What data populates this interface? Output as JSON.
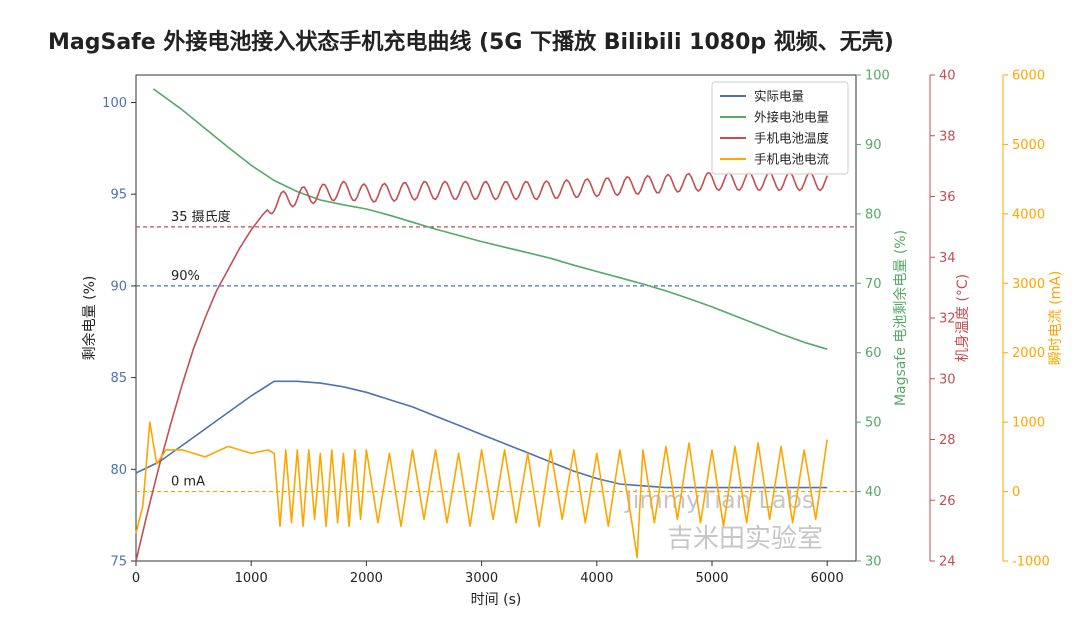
{
  "chart_data": {
    "type": "line",
    "title": "MagSafe 外接电池接入状态手机充电曲线 (5G 下播放 Bilibili 1080p 视频、无壳)",
    "xlabel": "时间 (s)",
    "xlim": [
      0,
      6250
    ],
    "xticks": [
      0,
      1000,
      2000,
      3000,
      4000,
      5000,
      6000
    ],
    "axes": [
      {
        "id": "battery",
        "label": "剩余电量 (%)",
        "ylim": [
          75,
          101.5
        ],
        "ticks": [
          75,
          80,
          85,
          90,
          95,
          100
        ],
        "color": "#4c72b0"
      },
      {
        "id": "external",
        "label": "Magsafe 电池剩余电量 (%)",
        "ylim": [
          30,
          100
        ],
        "ticks": [
          30,
          40,
          50,
          60,
          70,
          80,
          90,
          100
        ],
        "color": "#55a868"
      },
      {
        "id": "temp",
        "label": "机身温度 (°C)",
        "ylim": [
          24,
          40
        ],
        "ticks": [
          24,
          26,
          28,
          30,
          32,
          34,
          36,
          38,
          40
        ],
        "color": "#c44e52"
      },
      {
        "id": "current",
        "label": "瞬时电流 (mA)",
        "ylim": [
          -1000,
          6000
        ],
        "ticks": [
          -1000,
          0,
          1000,
          2000,
          3000,
          4000,
          5000,
          6000
        ],
        "color": "#ffa500"
      }
    ],
    "series": [
      {
        "name": "实际电量",
        "axis": "battery",
        "color": "#4c72b0",
        "x": [
          0,
          200,
          400,
          600,
          800,
          1000,
          1200,
          1400,
          1600,
          1800,
          2000,
          2200,
          2400,
          2600,
          2800,
          3000,
          3200,
          3400,
          3600,
          3800,
          4000,
          4200,
          4400,
          4600,
          4800,
          5000,
          5200,
          5400,
          5600,
          5800,
          6000
        ],
        "y": [
          79.8,
          80.4,
          81.3,
          82.2,
          83.1,
          84.0,
          84.8,
          84.8,
          84.7,
          84.5,
          84.2,
          83.8,
          83.4,
          82.9,
          82.4,
          81.9,
          81.4,
          80.9,
          80.4,
          79.9,
          79.5,
          79.2,
          79.1,
          79.0,
          79.0,
          79.0,
          79.0,
          79.0,
          79.0,
          79.0,
          79.0
        ]
      },
      {
        "name": "外接电池电量",
        "axis": "external",
        "color": "#55a868",
        "x": [
          150,
          400,
          600,
          800,
          1000,
          1200,
          1400,
          1600,
          1800,
          2000,
          2200,
          2400,
          2600,
          2800,
          3000,
          3200,
          3400,
          3600,
          3800,
          4000,
          4200,
          4400,
          4600,
          4800,
          5000,
          5200,
          5400,
          5600,
          5800,
          6000
        ],
        "y": [
          98.0,
          95.0,
          92.3,
          89.6,
          87.0,
          84.8,
          83.2,
          82.0,
          81.3,
          80.7,
          79.8,
          78.8,
          77.8,
          76.9,
          76.0,
          75.2,
          74.4,
          73.6,
          72.6,
          71.7,
          70.8,
          69.9,
          68.9,
          67.8,
          66.6,
          65.3,
          64.0,
          62.7,
          61.5,
          60.5
        ]
      },
      {
        "name": "手机电池温度",
        "axis": "temp",
        "color": "#c44e52",
        "x": [
          0,
          100,
          200,
          300,
          400,
          500,
          600,
          700,
          800,
          900,
          1000,
          1100,
          1200,
          1400,
          1600,
          1800,
          2000,
          2500,
          3000,
          3500,
          4000,
          4500,
          5000,
          5500,
          6000
        ],
        "y": [
          24.0,
          25.6,
          27.1,
          28.5,
          29.8,
          31.0,
          32.0,
          32.9,
          33.6,
          34.3,
          34.9,
          35.4,
          35.8,
          36.0,
          36.1,
          36.2,
          36.1,
          36.2,
          36.2,
          36.2,
          36.3,
          36.4,
          36.5,
          36.5,
          36.5
        ],
        "oscillation": 0.3
      },
      {
        "name": "手机电池电流",
        "axis": "current",
        "color": "#ffa500",
        "x": [
          0,
          60,
          120,
          180,
          260,
          400,
          600,
          800,
          1000,
          1150,
          1200,
          1250,
          1300,
          1350,
          1400,
          1450,
          1500,
          1550,
          1600,
          1650,
          1700,
          1750,
          1800,
          1850,
          1900,
          1950,
          2000,
          2100,
          2200,
          2300,
          2400,
          2500,
          2600,
          2700,
          2800,
          2900,
          3000,
          3100,
          3200,
          3300,
          3400,
          3500,
          3600,
          3700,
          3800,
          3900,
          4000,
          4100,
          4200,
          4300,
          4350,
          4400,
          4500,
          4600,
          4700,
          4800,
          4900,
          5000,
          5100,
          5200,
          5300,
          5400,
          5500,
          5600,
          5700,
          5800,
          5900,
          6000
        ],
        "y": [
          -600,
          -200,
          1000,
          400,
          600,
          600,
          500,
          650,
          550,
          600,
          550,
          -500,
          600,
          -450,
          600,
          -500,
          600,
          -400,
          550,
          -500,
          600,
          -450,
          550,
          -500,
          600,
          -400,
          600,
          -450,
          550,
          -500,
          600,
          -400,
          600,
          -450,
          550,
          -500,
          600,
          -400,
          600,
          -450,
          550,
          -500,
          600,
          -400,
          600,
          -450,
          550,
          -500,
          600,
          -400,
          -950,
          600,
          -450,
          650,
          -400,
          700,
          -450,
          600,
          -500,
          650,
          -450,
          700,
          -400,
          650,
          -450,
          600,
          -400,
          750
        ]
      }
    ],
    "reference_lines": [
      {
        "label": "35 摄氏度",
        "axis": "temp",
        "value": 35,
        "color": "#c44e52"
      },
      {
        "label": "90%",
        "axis": "battery",
        "value": 90,
        "color": "#4c72b0"
      },
      {
        "label": "0 mA",
        "axis": "current",
        "value": 0,
        "color": "#ffa500"
      }
    ],
    "legend_position": "top-right",
    "watermark": [
      "JimmyTian Labs",
      "吉米田实验室"
    ],
    "grid": false
  }
}
